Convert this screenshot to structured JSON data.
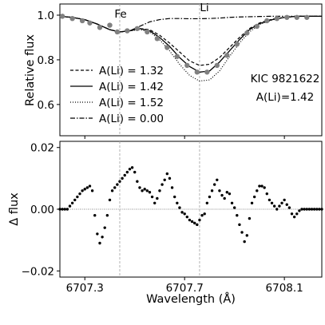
{
  "chart_data": [
    {
      "type": "line",
      "panel": "top",
      "ylabel": "Relative flux",
      "xlim": [
        6707.2,
        6708.25
      ],
      "ylim": [
        0.46,
        1.05
      ],
      "yticks": [
        0.6,
        0.8,
        1.0
      ],
      "ytick_labels": [
        "0.6",
        "0.8",
        "1.0"
      ],
      "xticks": [
        6707.3,
        6707.7,
        6708.1
      ],
      "line_annotations": [
        {
          "label": "Fe",
          "x": 6707.44
        },
        {
          "label": "Li",
          "x": 6707.76
        }
      ],
      "text_annotations": [
        "KIC 9821622",
        "A(Li)=1.42"
      ],
      "legend": {
        "placement": "lower-left",
        "entries": [
          {
            "label": "A(Li) = 1.32",
            "style": "dashed"
          },
          {
            "label": "A(Li) = 1.42",
            "style": "solid"
          },
          {
            "label": "A(Li) = 1.52",
            "style": "dotted"
          },
          {
            "label": "A(Li) = 0.00",
            "style": "dashdot"
          }
        ]
      },
      "series": [
        {
          "style": "dashed",
          "x": [
            6707.2,
            6707.25,
            6707.3,
            6707.35,
            6707.4,
            6707.44,
            6707.48,
            6707.52,
            6707.56,
            6707.6,
            6707.64,
            6707.68,
            6707.72,
            6707.76,
            6707.8,
            6707.84,
            6707.88,
            6707.92,
            6707.96,
            6708.0,
            6708.05,
            6708.1,
            6708.15,
            6708.2,
            6708.25
          ],
          "y": [
            0.995,
            0.99,
            0.98,
            0.96,
            0.935,
            0.925,
            0.93,
            0.94,
            0.935,
            0.91,
            0.875,
            0.835,
            0.795,
            0.775,
            0.78,
            0.81,
            0.855,
            0.9,
            0.94,
            0.965,
            0.982,
            0.99,
            0.995,
            0.995,
            0.995
          ]
        },
        {
          "style": "solid",
          "x": [
            6707.2,
            6707.25,
            6707.3,
            6707.35,
            6707.4,
            6707.44,
            6707.48,
            6707.52,
            6707.56,
            6707.6,
            6707.64,
            6707.68,
            6707.72,
            6707.76,
            6707.8,
            6707.84,
            6707.88,
            6707.92,
            6707.96,
            6708.0,
            6708.05,
            6708.1,
            6708.15,
            6708.2,
            6708.25
          ],
          "y": [
            0.995,
            0.99,
            0.98,
            0.96,
            0.935,
            0.925,
            0.93,
            0.94,
            0.93,
            0.9,
            0.86,
            0.81,
            0.77,
            0.745,
            0.75,
            0.79,
            0.84,
            0.89,
            0.935,
            0.962,
            0.98,
            0.99,
            0.995,
            0.995,
            0.995
          ]
        },
        {
          "style": "dotted",
          "x": [
            6707.2,
            6707.25,
            6707.3,
            6707.35,
            6707.4,
            6707.44,
            6707.48,
            6707.52,
            6707.56,
            6707.6,
            6707.64,
            6707.68,
            6707.72,
            6707.76,
            6707.8,
            6707.84,
            6707.88,
            6707.92,
            6707.96,
            6708.0,
            6708.05,
            6708.1,
            6708.15,
            6708.2,
            6708.25
          ],
          "y": [
            0.995,
            0.99,
            0.98,
            0.96,
            0.935,
            0.925,
            0.93,
            0.935,
            0.925,
            0.89,
            0.84,
            0.78,
            0.73,
            0.705,
            0.71,
            0.75,
            0.815,
            0.875,
            0.925,
            0.958,
            0.978,
            0.99,
            0.995,
            0.995,
            0.995
          ]
        },
        {
          "style": "dashdot",
          "x": [
            6707.2,
            6707.25,
            6707.3,
            6707.35,
            6707.4,
            6707.44,
            6707.48,
            6707.52,
            6707.56,
            6707.6,
            6707.64,
            6707.68,
            6707.72,
            6707.76,
            6707.8,
            6707.84,
            6707.88,
            6707.92,
            6707.96,
            6708.0,
            6708.05,
            6708.1,
            6708.15,
            6708.2,
            6708.25
          ],
          "y": [
            0.995,
            0.99,
            0.98,
            0.96,
            0.935,
            0.925,
            0.93,
            0.95,
            0.97,
            0.98,
            0.985,
            0.985,
            0.984,
            0.984,
            0.985,
            0.987,
            0.99,
            0.992,
            0.993,
            0.994,
            0.995,
            0.995,
            0.995,
            0.995,
            0.995
          ]
        },
        {
          "style": "observed-points",
          "color": "#808080",
          "x": [
            6707.21,
            6707.25,
            6707.29,
            6707.32,
            6707.36,
            6707.4,
            6707.43,
            6707.47,
            6707.51,
            6707.55,
            6707.59,
            6707.63,
            6707.67,
            6707.71,
            6707.75,
            6707.79,
            6707.83,
            6707.87,
            6707.91,
            6707.95,
            6707.99,
            6708.03,
            6708.07,
            6708.11,
            6708.15,
            6708.19
          ],
          "y": [
            0.995,
            0.985,
            0.975,
            0.965,
            0.945,
            0.955,
            0.925,
            0.93,
            0.94,
            0.925,
            0.895,
            0.855,
            0.815,
            0.775,
            0.745,
            0.745,
            0.775,
            0.82,
            0.87,
            0.92,
            0.95,
            0.975,
            0.985,
            0.99,
            0.99,
            0.99
          ]
        }
      ]
    },
    {
      "type": "scatter",
      "panel": "bottom",
      "xlabel": "Wavelength (Å)",
      "ylabel": "Δ flux",
      "xlim": [
        6707.2,
        6708.25
      ],
      "ylim": [
        -0.022,
        0.022
      ],
      "yticks": [
        -0.02,
        0.0,
        0.02
      ],
      "ytick_labels": [
        "−0.02",
        "0.00",
        "0.02"
      ],
      "xticks": [
        6707.3,
        6707.7,
        6708.1
      ],
      "xtick_labels": [
        "6707.3",
        "6707.7",
        "6708.1"
      ],
      "zero_line": true,
      "series": [
        {
          "color": "#000000",
          "x": [
            6707.2,
            6707.21,
            6707.22,
            6707.23,
            6707.24,
            6707.25,
            6707.26,
            6707.27,
            6707.28,
            6707.29,
            6707.3,
            6707.31,
            6707.32,
            6707.33,
            6707.34,
            6707.35,
            6707.36,
            6707.37,
            6707.38,
            6707.39,
            6707.4,
            6707.41,
            6707.42,
            6707.43,
            6707.44,
            6707.45,
            6707.46,
            6707.47,
            6707.48,
            6707.49,
            6707.5,
            6707.51,
            6707.52,
            6707.53,
            6707.54,
            6707.55,
            6707.56,
            6707.57,
            6707.58,
            6707.59,
            6707.6,
            6707.61,
            6707.62,
            6707.63,
            6707.64,
            6707.65,
            6707.66,
            6707.67,
            6707.68,
            6707.69,
            6707.7,
            6707.71,
            6707.72,
            6707.73,
            6707.74,
            6707.75,
            6707.76,
            6707.77,
            6707.78,
            6707.79,
            6707.8,
            6707.81,
            6707.82,
            6707.83,
            6707.84,
            6707.85,
            6707.86,
            6707.87,
            6707.88,
            6707.89,
            6707.9,
            6707.91,
            6707.92,
            6707.93,
            6707.94,
            6707.95,
            6707.96,
            6707.97,
            6707.98,
            6707.99,
            6708.0,
            6708.01,
            6708.02,
            6708.03,
            6708.04,
            6708.05,
            6708.06,
            6708.07,
            6708.08,
            6708.09,
            6708.1,
            6708.11,
            6708.12,
            6708.13,
            6708.14,
            6708.15,
            6708.16,
            6708.17,
            6708.18,
            6708.19,
            6708.2,
            6708.21,
            6708.22,
            6708.23,
            6708.24,
            6708.25
          ],
          "y": [
            0.0,
            0.0,
            0.0,
            0.0,
            0.001,
            0.002,
            0.003,
            0.004,
            0.005,
            0.006,
            0.0065,
            0.007,
            0.0075,
            0.006,
            -0.002,
            -0.008,
            -0.011,
            -0.009,
            -0.006,
            -0.002,
            0.003,
            0.006,
            0.007,
            0.008,
            0.009,
            0.01,
            0.011,
            0.012,
            0.013,
            0.0135,
            0.012,
            0.009,
            0.007,
            0.006,
            0.0065,
            0.006,
            0.0055,
            0.004,
            0.002,
            0.0035,
            0.006,
            0.008,
            0.0095,
            0.0115,
            0.01,
            0.007,
            0.004,
            0.002,
            0.0005,
            -0.001,
            -0.0015,
            -0.0025,
            -0.0035,
            -0.004,
            -0.0045,
            -0.005,
            -0.0035,
            -0.002,
            -0.0015,
            0.002,
            0.004,
            0.006,
            0.008,
            0.0095,
            0.006,
            0.0045,
            0.0035,
            0.0055,
            0.005,
            0.002,
            0.0005,
            -0.002,
            -0.005,
            -0.0075,
            -0.0105,
            -0.0085,
            -0.003,
            0.002,
            0.004,
            0.006,
            0.0075,
            0.0075,
            0.007,
            0.005,
            0.003,
            0.002,
            0.001,
            0.0,
            0.001,
            0.002,
            0.003,
            0.0015,
            0.0005,
            -0.0015,
            -0.0025,
            -0.0015,
            -0.0005,
            0.0,
            0.0,
            0.0,
            0.0,
            0.0,
            0.0,
            0.0,
            0.0,
            0.0
          ]
        }
      ]
    }
  ]
}
